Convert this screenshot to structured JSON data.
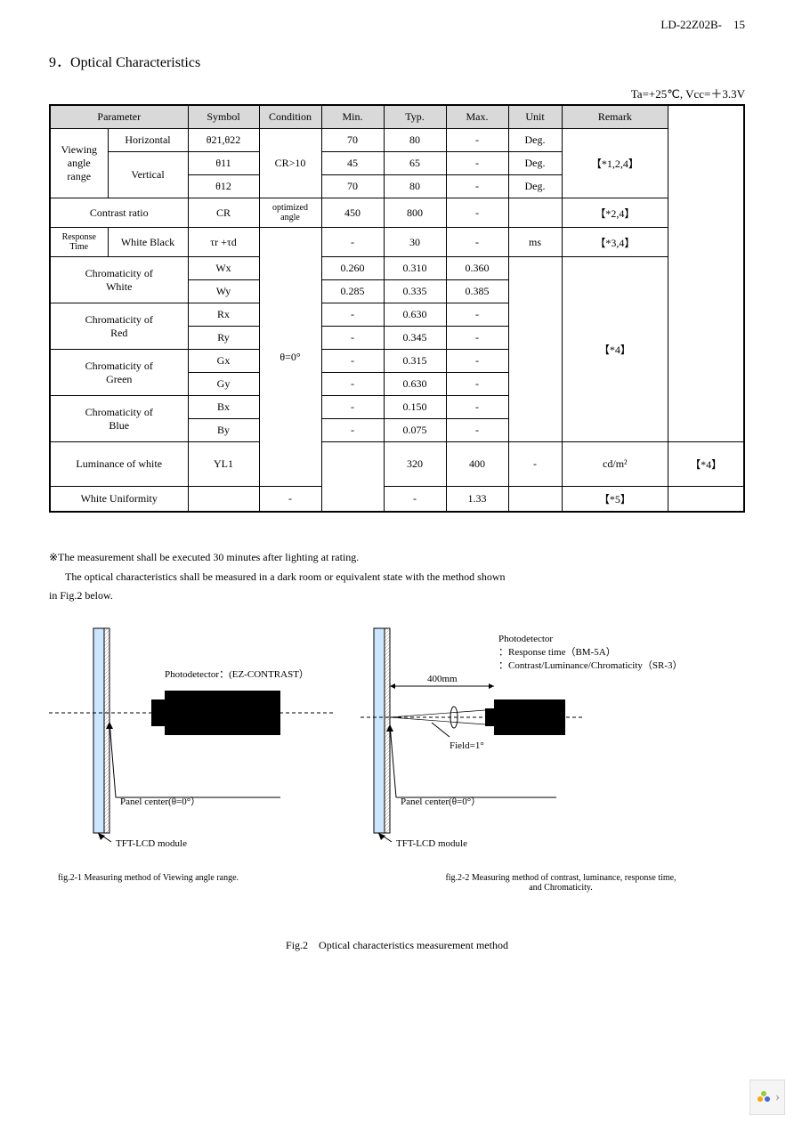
{
  "header": {
    "docid": "LD-22Z02B-",
    "page": "15"
  },
  "section": {
    "num": "9．",
    "title": "Optical Characteristics"
  },
  "cond": "Ta=+25℃, Vcc=＋3.3V",
  "thead": {
    "param": "Parameter",
    "symbol": "Symbol",
    "condition": "Condition",
    "min": "Min.",
    "typ": "Typ.",
    "max": "Max.",
    "unit": "Unit",
    "remark": "Remark"
  },
  "rows": {
    "viewing": {
      "label": "Viewing\nangle\nrange",
      "horiz": "Horizontal",
      "vert": "Vertical"
    },
    "r1": {
      "sym": "θ21,θ22",
      "cond": "CR>10",
      "min": "70",
      "typ": "80",
      "max": "-",
      "unit": "Deg.",
      "rem": "【*1,2,4】"
    },
    "r2": {
      "sym": "θ11",
      "min": "45",
      "typ": "65",
      "max": "-",
      "unit": "Deg."
    },
    "r3": {
      "sym": "θ12",
      "min": "70",
      "typ": "80",
      "max": "-",
      "unit": "Deg."
    },
    "contrast": {
      "label": "Contrast ratio",
      "sym": "CR",
      "cond": "optimized\nangle",
      "min": "450",
      "typ": "800",
      "max": "-",
      "unit": "",
      "rem": "【*2,4】"
    },
    "response": {
      "label1": "Response Time",
      "label2": "White Black",
      "sym": "τr +τd",
      "cond": "θ=0°",
      "min": "-",
      "typ": "30",
      "max": "-",
      "unit": "ms",
      "rem": "【*3,4】"
    },
    "white": {
      "label": "Chromaticity of\nWhite",
      "s1": "Wx",
      "min1": "0.260",
      "typ1": "0.310",
      "max1": "0.360",
      "s2": "Wy",
      "min2": "0.285",
      "typ2": "0.335",
      "max2": "0.385",
      "rem": "【*4】"
    },
    "red": {
      "label": "Chromaticity of\nRed",
      "s1": "Rx",
      "typ1": "0.630",
      "s2": "Ry",
      "typ2": "0.345"
    },
    "green": {
      "label": "Chromaticity of\nGreen",
      "s1": "Gx",
      "typ1": "0.315",
      "s2": "Gy",
      "typ2": "0.630"
    },
    "blue": {
      "label": "Chromaticity of\nBlue",
      "s1": "Bx",
      "typ1": "0.150",
      "s2": "By",
      "typ2": "0.075"
    },
    "lum": {
      "label": "Luminance of white",
      "sym": "YL1",
      "min": "320",
      "typ": "400",
      "max": "-",
      "unit": "cd/m²",
      "rem": "【*4】"
    },
    "uni": {
      "label": "White Uniformity",
      "sym": "",
      "min": "-",
      "typ": "-",
      "max": "1.33",
      "unit": "",
      "rem": "【*5】"
    }
  },
  "notes": {
    "n1": "※The measurement shall be executed 30 minutes after lighting at rating.",
    "n2": "The optical characteristics shall be measured in a dark room or equivalent state with the method shown",
    "n3": "in Fig.2 below."
  },
  "fig": {
    "pd1": "Photodetector：(EZ-CONTRAST）",
    "pd2_title": "Photodetector",
    "pd2_1": "：Response time（BM-5A）",
    "pd2_2": "：Contrast/Luminance/Chromaticity（SR-3）",
    "dist": "400mm",
    "field": "Field=1°",
    "panel": "Panel center(θ=0°）",
    "tft": "TFT-LCD module",
    "cap1": "fig.2-1 Measuring method of Viewing angle range.",
    "cap2": "fig.2-2 Measuring method of contrast, luminance, response time,\nand Chromaticity.",
    "main": "Fig.2　Optical characteristics measurement method"
  },
  "nav": {
    "chevron": "›"
  }
}
